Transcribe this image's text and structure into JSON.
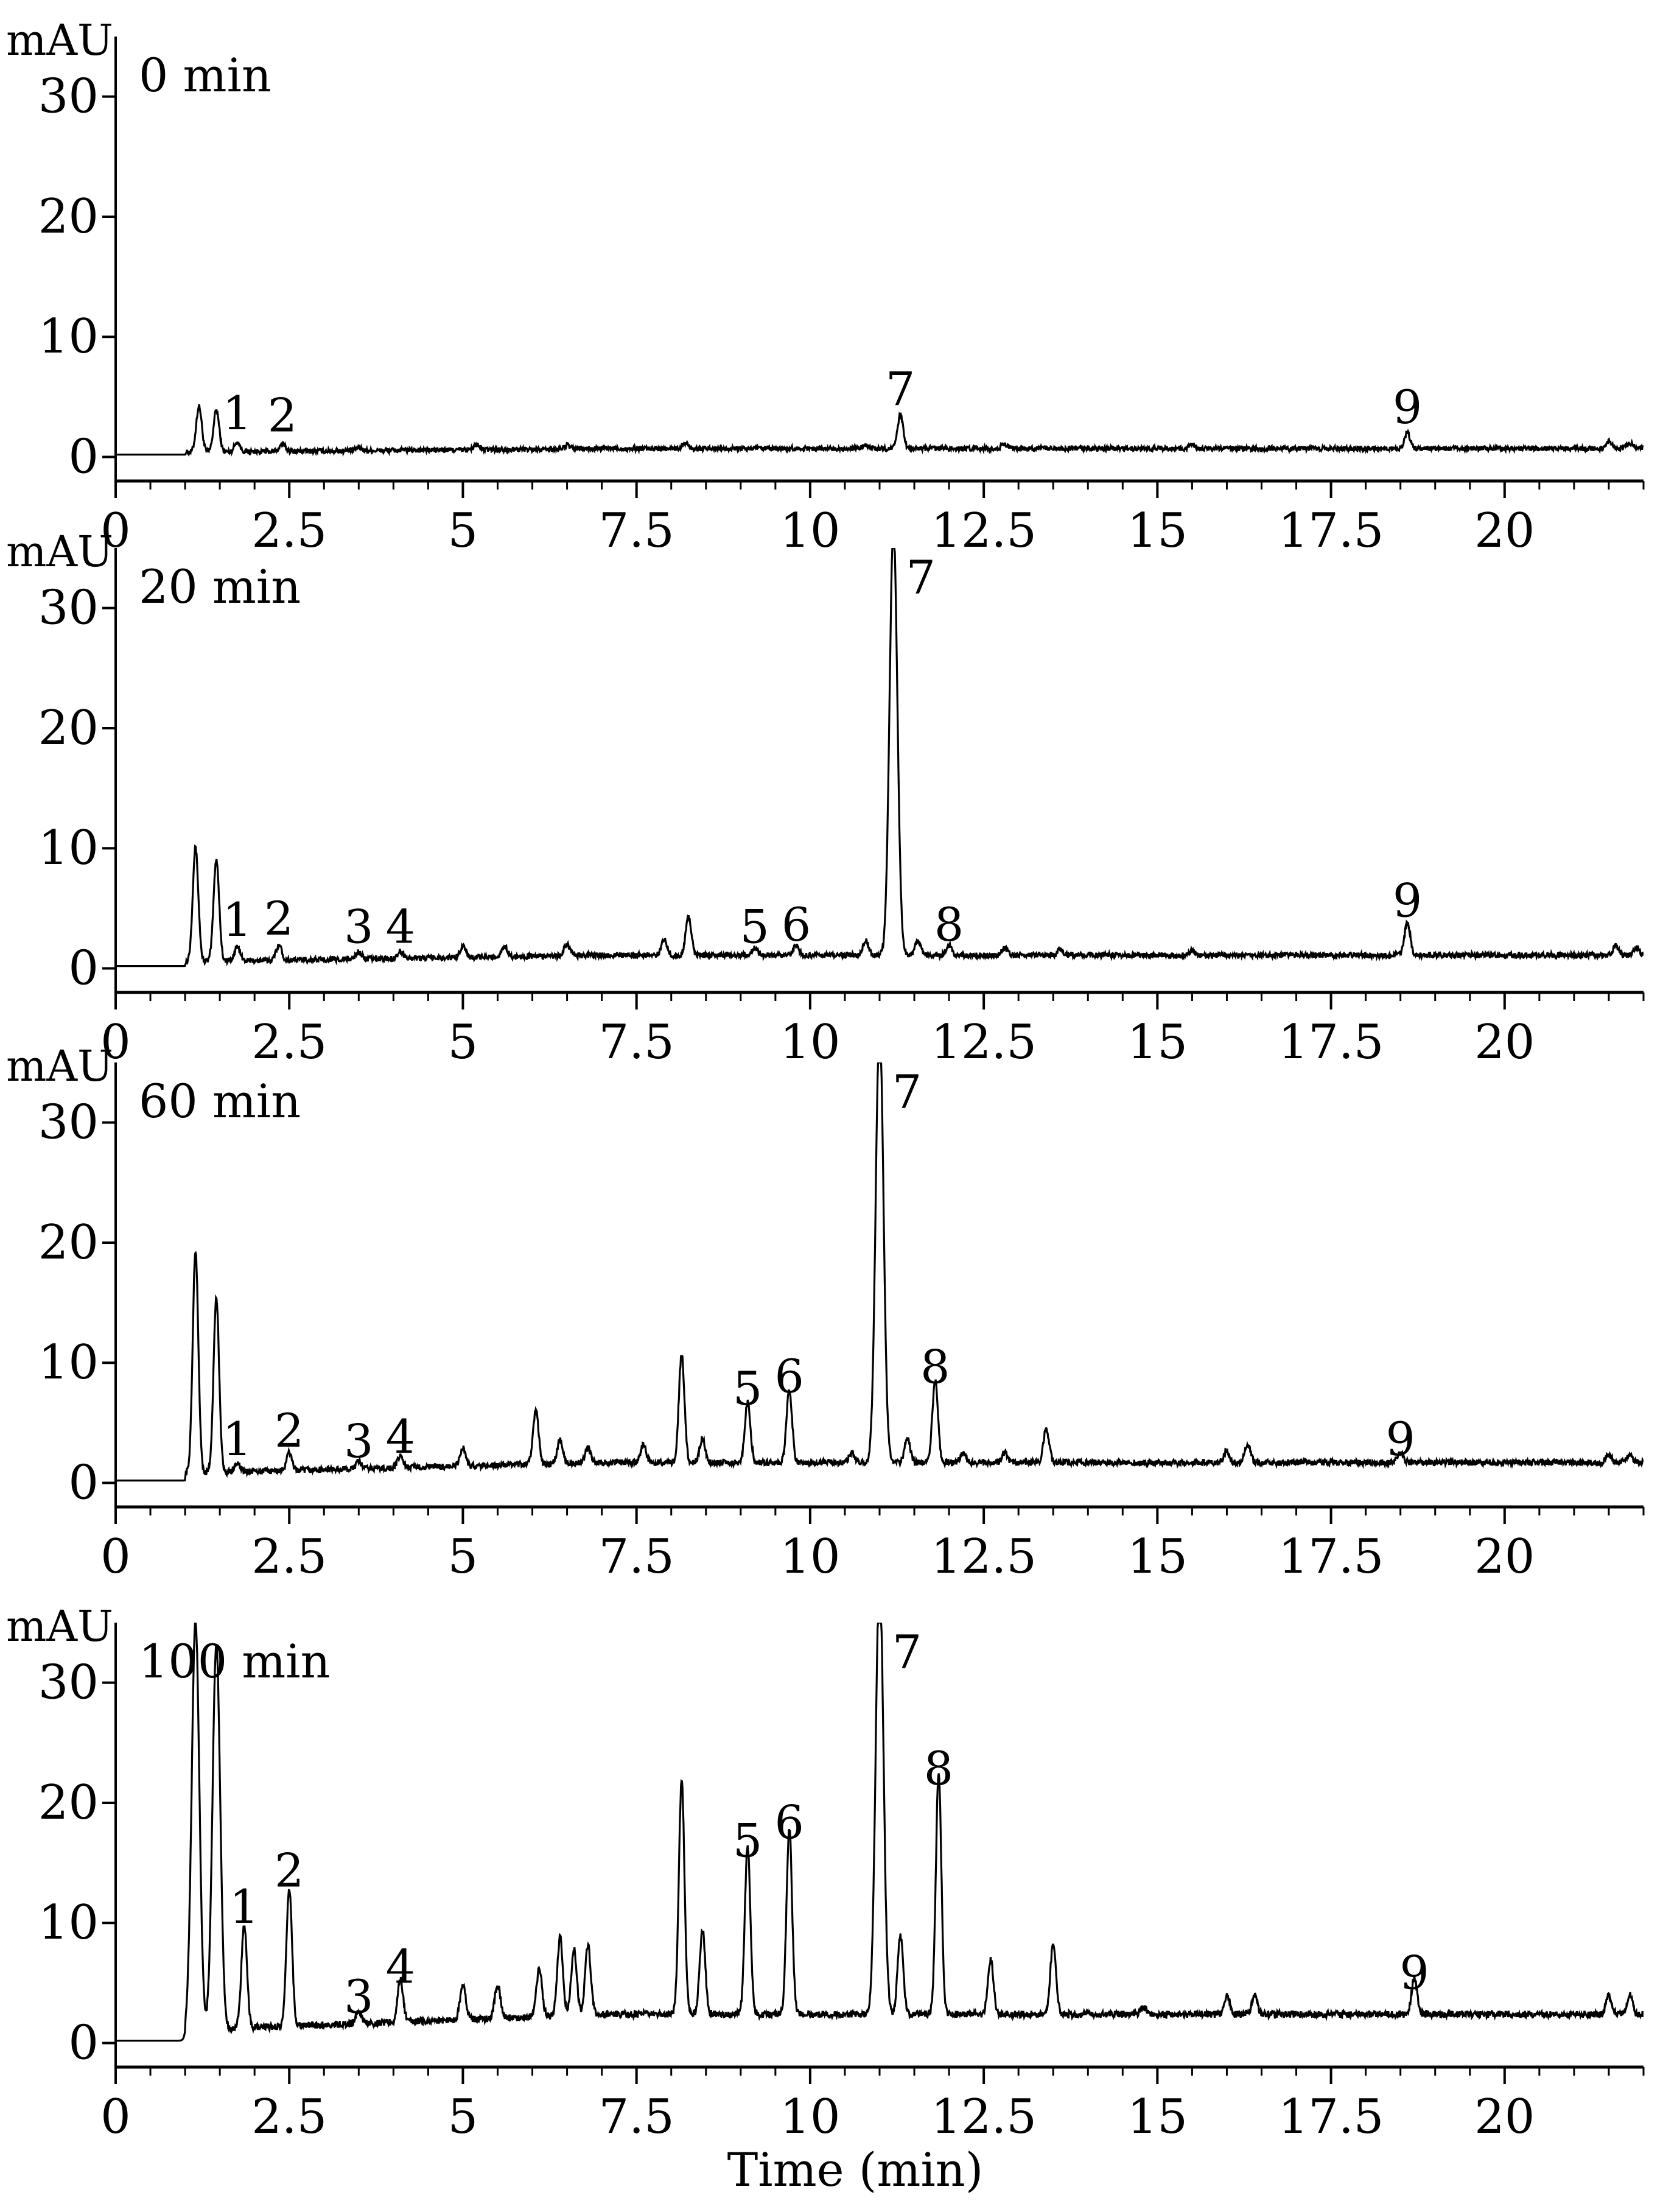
{
  "chart_data": [
    {
      "type": "line",
      "panel_label": "0 min",
      "y_unit": "mAU",
      "xlim": [
        0,
        22
      ],
      "ylim": [
        -2,
        35
      ],
      "x_ticks": [
        "0",
        "2.5",
        "5",
        "7.5",
        "10",
        "12.5",
        "15",
        "17.5",
        "20"
      ],
      "y_ticks": [
        "0",
        "10",
        "20",
        "30"
      ],
      "baseline": 0.2,
      "drift": 0.5,
      "peaks": [
        [
          1.2,
          3.8
        ],
        [
          1.45,
          3.5
        ],
        [
          1.75,
          0.8
        ],
        [
          2.4,
          0.6
        ],
        [
          3.5,
          0.3
        ],
        [
          5.2,
          0.4
        ],
        [
          6.5,
          0.3
        ],
        [
          8.2,
          0.5
        ],
        [
          10.8,
          0.3
        ],
        [
          11.3,
          2.8
        ],
        [
          12.8,
          0.4
        ],
        [
          15.5,
          0.3
        ],
        [
          18.6,
          1.3
        ],
        [
          21.5,
          0.6
        ],
        [
          21.8,
          0.5
        ]
      ],
      "peak_labels": [
        {
          "x": 1.75,
          "y": 0.8,
          "label": "1"
        },
        {
          "x": 2.4,
          "y": 0.6,
          "label": "2"
        },
        {
          "x": 11.3,
          "y": 2.8,
          "label": "7"
        },
        {
          "x": 18.6,
          "y": 1.3,
          "label": "9"
        }
      ]
    },
    {
      "type": "line",
      "panel_label": "20 min",
      "y_unit": "mAU",
      "xlim": [
        0,
        22
      ],
      "ylim": [
        -2,
        35
      ],
      "x_ticks": [
        "0",
        "2.5",
        "5",
        "7.5",
        "10",
        "12.5",
        "15",
        "17.5",
        "20"
      ],
      "y_ticks": [
        "0",
        "10",
        "20",
        "30"
      ],
      "baseline": 0.2,
      "drift": 0.9,
      "peaks": [
        [
          1.15,
          9.5
        ],
        [
          1.45,
          8.5
        ],
        [
          1.75,
          1.2
        ],
        [
          2.35,
          1.3
        ],
        [
          3.5,
          0.6
        ],
        [
          4.1,
          0.6
        ],
        [
          5.0,
          1.0
        ],
        [
          5.6,
          0.9
        ],
        [
          6.5,
          1.0
        ],
        [
          7.9,
          1.3
        ],
        [
          8.25,
          3.2
        ],
        [
          9.2,
          0.6
        ],
        [
          9.8,
          0.8
        ],
        [
          10.8,
          1.2
        ],
        [
          11.2,
          36
        ],
        [
          11.55,
          1.2
        ],
        [
          12.0,
          0.8
        ],
        [
          12.8,
          0.6
        ],
        [
          13.6,
          0.5
        ],
        [
          15.5,
          0.4
        ],
        [
          18.6,
          2.8
        ],
        [
          21.6,
          0.8
        ],
        [
          21.9,
          0.7
        ]
      ],
      "peak_labels": [
        {
          "x": 1.75,
          "y": 1.2,
          "label": "1"
        },
        {
          "x": 2.35,
          "y": 1.3,
          "label": "2"
        },
        {
          "x": 3.5,
          "y": 0.6,
          "label": "3"
        },
        {
          "x": 4.1,
          "y": 0.6,
          "label": "4"
        },
        {
          "x": 9.2,
          "y": 0.6,
          "label": "5"
        },
        {
          "x": 9.8,
          "y": 0.8,
          "label": "6"
        },
        {
          "x": 11.2,
          "y": 36,
          "label": "7"
        },
        {
          "x": 12.0,
          "y": 0.8,
          "label": "8"
        },
        {
          "x": 18.6,
          "y": 2.8,
          "label": "9"
        }
      ]
    },
    {
      "type": "line",
      "panel_label": "60 min",
      "y_unit": "mAU",
      "xlim": [
        0,
        22
      ],
      "ylim": [
        -2,
        35
      ],
      "x_ticks": [
        "0",
        "2.5",
        "5",
        "7.5",
        "10",
        "12.5",
        "15",
        "17.5",
        "20"
      ],
      "y_ticks": [
        "0",
        "10",
        "20",
        "30"
      ],
      "baseline": 0.2,
      "drift": 1.5,
      "peaks": [
        [
          1.15,
          18.5
        ],
        [
          1.45,
          14.5
        ],
        [
          1.75,
          0.8
        ],
        [
          2.5,
          1.5
        ],
        [
          3.5,
          0.6
        ],
        [
          4.1,
          1.0
        ],
        [
          5.0,
          1.5
        ],
        [
          6.05,
          4.5
        ],
        [
          6.4,
          2.0
        ],
        [
          6.8,
          1.2
        ],
        [
          7.6,
          1.5
        ],
        [
          8.15,
          9.0
        ],
        [
          8.45,
          2.0
        ],
        [
          9.1,
          5.0
        ],
        [
          9.7,
          6.0
        ],
        [
          10.6,
          0.8
        ],
        [
          11.0,
          37
        ],
        [
          11.4,
          2.0
        ],
        [
          11.8,
          6.8
        ],
        [
          12.2,
          0.8
        ],
        [
          12.8,
          0.8
        ],
        [
          13.4,
          2.8
        ],
        [
          16.0,
          1.0
        ],
        [
          16.3,
          1.5
        ],
        [
          18.5,
          0.8
        ],
        [
          21.5,
          0.6
        ],
        [
          21.8,
          0.6
        ]
      ],
      "peak_labels": [
        {
          "x": 1.75,
          "y": 0.8,
          "label": "1"
        },
        {
          "x": 2.5,
          "y": 1.5,
          "label": "2"
        },
        {
          "x": 3.5,
          "y": 0.6,
          "label": "3"
        },
        {
          "x": 4.1,
          "y": 1.0,
          "label": "4"
        },
        {
          "x": 9.1,
          "y": 5.0,
          "label": "5"
        },
        {
          "x": 9.7,
          "y": 6.0,
          "label": "6"
        },
        {
          "x": 11.0,
          "y": 37,
          "label": "7"
        },
        {
          "x": 11.8,
          "y": 6.8,
          "label": "8"
        },
        {
          "x": 18.5,
          "y": 0.8,
          "label": "9"
        }
      ]
    },
    {
      "type": "line",
      "panel_label": "100 min",
      "y_unit": "mAU",
      "xlim": [
        0,
        22
      ],
      "ylim": [
        -2,
        35
      ],
      "x_ticks": [
        "0",
        "2.5",
        "5",
        "7.5",
        "10",
        "12.5",
        "15",
        "17.5",
        "20"
      ],
      "y_ticks": [
        "0",
        "10",
        "20",
        "30"
      ],
      "baseline": 0.2,
      "drift": 2.2,
      "xlabel": "Time (min)",
      "peaks": [
        [
          1.15,
          34
        ],
        [
          1.45,
          32
        ],
        [
          1.85,
          8.5
        ],
        [
          2.5,
          11.5
        ],
        [
          3.5,
          1.0
        ],
        [
          4.1,
          3.5
        ],
        [
          5.0,
          3.0
        ],
        [
          5.5,
          2.8
        ],
        [
          6.1,
          4.0
        ],
        [
          6.4,
          6.5
        ],
        [
          6.6,
          5.5
        ],
        [
          6.8,
          5.8
        ],
        [
          8.15,
          19.5
        ],
        [
          8.45,
          7.0
        ],
        [
          9.1,
          14.0
        ],
        [
          9.7,
          15.5
        ],
        [
          11.0,
          37
        ],
        [
          11.3,
          6.5
        ],
        [
          11.85,
          20.0
        ],
        [
          12.6,
          4.5
        ],
        [
          13.5,
          6.0
        ],
        [
          14.8,
          0.6
        ],
        [
          16.0,
          1.5
        ],
        [
          16.4,
          1.5
        ],
        [
          18.7,
          3.0
        ],
        [
          21.5,
          1.6
        ],
        [
          21.8,
          1.6
        ]
      ],
      "peak_labels": [
        {
          "x": 1.85,
          "y": 8.5,
          "label": "1"
        },
        {
          "x": 2.5,
          "y": 11.5,
          "label": "2"
        },
        {
          "x": 3.5,
          "y": 1.0,
          "label": "3"
        },
        {
          "x": 4.1,
          "y": 3.5,
          "label": "4"
        },
        {
          "x": 9.1,
          "y": 14.0,
          "label": "5"
        },
        {
          "x": 9.7,
          "y": 15.5,
          "label": "6"
        },
        {
          "x": 11.0,
          "y": 37,
          "label": "7"
        },
        {
          "x": 11.85,
          "y": 20.0,
          "label": "8"
        },
        {
          "x": 18.7,
          "y": 3.0,
          "label": "9"
        }
      ]
    }
  ]
}
